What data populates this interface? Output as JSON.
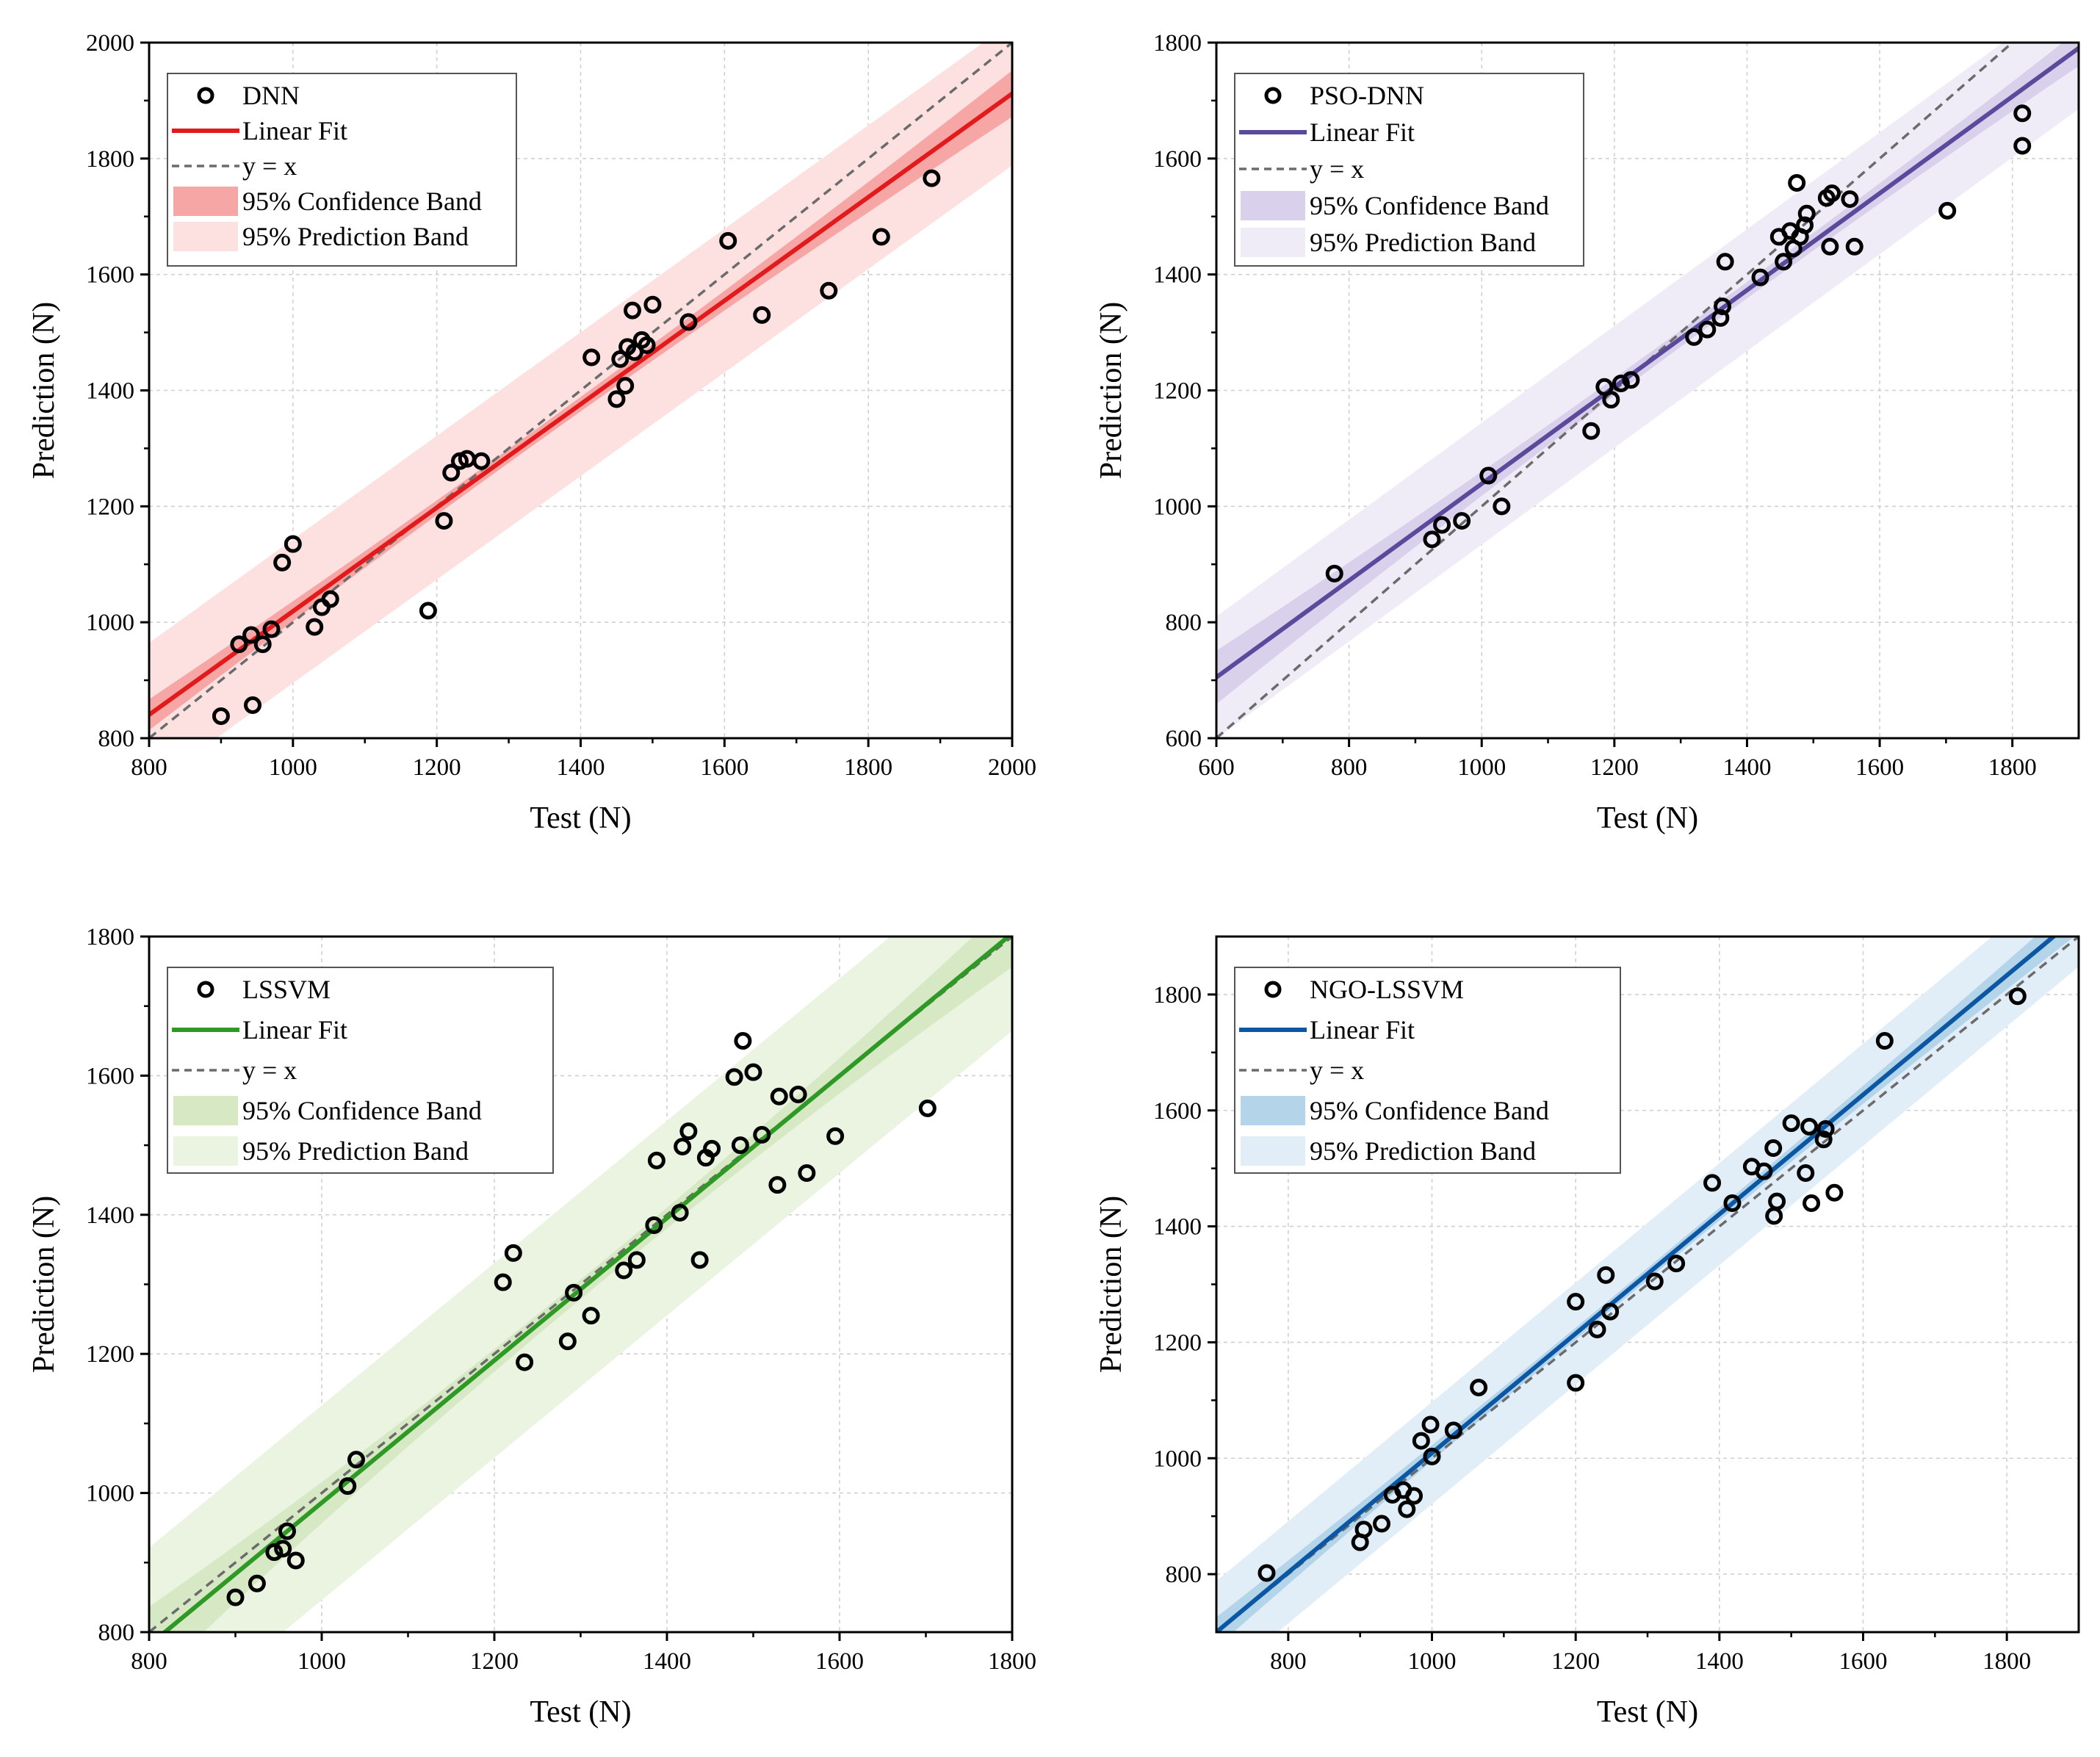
{
  "chart_data": [
    {
      "type": "scatter",
      "model": "DNN",
      "color": "#e31a1c",
      "conf_color": "#f7a6a6",
      "pred_color": "#fde1e1",
      "xlabel": "Test (N)",
      "ylabel": "Prediction (N)",
      "xlim": [
        800,
        2000
      ],
      "ylim": [
        800,
        2000
      ],
      "xticks": [
        800,
        1000,
        1200,
        1400,
        1600,
        1800,
        2000
      ],
      "yticks": [
        800,
        1000,
        1200,
        1400,
        1600,
        1800,
        2000
      ],
      "fit": {
        "slope": 0.893,
        "intercept": 126
      },
      "conf_halfwidth": {
        "min": 12,
        "max": 40
      },
      "pred_halfwidth": 124,
      "legend": {
        "points": "DNN",
        "fit": "Linear Fit",
        "identity": "y = x",
        "conf": "95% Confidence Band",
        "pred": "95% Prediction Band"
      },
      "points": [
        [
          900,
          838
        ],
        [
          925,
          962
        ],
        [
          942,
          978
        ],
        [
          944,
          857
        ],
        [
          958,
          962
        ],
        [
          970,
          988
        ],
        [
          985,
          1103
        ],
        [
          1000,
          1135
        ],
        [
          1030,
          992
        ],
        [
          1040,
          1026
        ],
        [
          1052,
          1040
        ],
        [
          1188,
          1020
        ],
        [
          1210,
          1175
        ],
        [
          1220,
          1258
        ],
        [
          1232,
          1278
        ],
        [
          1242,
          1282
        ],
        [
          1262,
          1278
        ],
        [
          1415,
          1457
        ],
        [
          1450,
          1385
        ],
        [
          1455,
          1454
        ],
        [
          1462,
          1408
        ],
        [
          1465,
          1475
        ],
        [
          1472,
          1538
        ],
        [
          1475,
          1466
        ],
        [
          1485,
          1487
        ],
        [
          1492,
          1478
        ],
        [
          1500,
          1548
        ],
        [
          1550,
          1518
        ],
        [
          1605,
          1658
        ],
        [
          1652,
          1530
        ],
        [
          1745,
          1572
        ],
        [
          1818,
          1665
        ],
        [
          1888,
          1766
        ]
      ]
    },
    {
      "type": "scatter",
      "model": "PSO-DNN",
      "color": "#5b4a9b",
      "conf_color": "#d9d1ec",
      "pred_color": "#efebf7",
      "xlabel": "Test (N)",
      "ylabel": "Prediction (N)",
      "xlim": [
        600,
        1900
      ],
      "ylim": [
        600,
        1800
      ],
      "xticks": [
        600,
        800,
        1000,
        1200,
        1400,
        1600,
        1800
      ],
      "yticks": [
        600,
        800,
        1000,
        1200,
        1400,
        1600,
        1800
      ],
      "fit": {
        "slope": 0.835,
        "intercept": 204
      },
      "conf_halfwidth": {
        "min": 14,
        "max": 46
      },
      "pred_halfwidth": 105,
      "legend": {
        "points": "PSO-DNN",
        "fit": "Linear Fit",
        "identity": "y = x",
        "conf": "95% Confidence Band",
        "pred": "95% Prediction Band"
      },
      "points": [
        [
          778,
          884
        ],
        [
          925,
          943
        ],
        [
          940,
          968
        ],
        [
          970,
          975
        ],
        [
          1010,
          1053
        ],
        [
          1030,
          1000
        ],
        [
          1165,
          1130
        ],
        [
          1185,
          1206
        ],
        [
          1195,
          1184
        ],
        [
          1210,
          1212
        ],
        [
          1225,
          1218
        ],
        [
          1320,
          1292
        ],
        [
          1340,
          1305
        ],
        [
          1360,
          1325
        ],
        [
          1363,
          1345
        ],
        [
          1367,
          1422
        ],
        [
          1420,
          1395
        ],
        [
          1448,
          1465
        ],
        [
          1455,
          1422
        ],
        [
          1465,
          1475
        ],
        [
          1470,
          1445
        ],
        [
          1475,
          1558
        ],
        [
          1480,
          1465
        ],
        [
          1487,
          1485
        ],
        [
          1490,
          1505
        ],
        [
          1520,
          1532
        ],
        [
          1525,
          1448
        ],
        [
          1528,
          1540
        ],
        [
          1555,
          1530
        ],
        [
          1562,
          1448
        ],
        [
          1702,
          1510
        ],
        [
          1815,
          1678
        ],
        [
          1815,
          1622
        ]
      ]
    },
    {
      "type": "scatter",
      "model": "LSSVM",
      "color": "#2e9a25",
      "conf_color": "#d6e8c4",
      "pred_color": "#eaf4e0",
      "xlabel": "Test (N)",
      "ylabel": "Prediction (N)",
      "xlim": [
        800,
        1800
      ],
      "ylim": [
        800,
        1800
      ],
      "xticks": [
        800,
        1000,
        1200,
        1400,
        1600,
        1800
      ],
      "yticks": [
        800,
        1000,
        1200,
        1400,
        1600,
        1800
      ],
      "fit": {
        "slope": 1.023,
        "intercept": -37
      },
      "conf_halfwidth": {
        "min": 14,
        "max": 55
      },
      "pred_halfwidth": 140,
      "legend": {
        "points": "LSSVM",
        "fit": "Linear Fit",
        "identity": "y = x",
        "conf": "95% Confidence Band",
        "pred": "95% Prediction Band"
      },
      "points": [
        [
          900,
          850
        ],
        [
          925,
          870
        ],
        [
          945,
          915
        ],
        [
          955,
          920
        ],
        [
          960,
          945
        ],
        [
          970,
          903
        ],
        [
          1030,
          1010
        ],
        [
          1040,
          1048
        ],
        [
          1210,
          1303
        ],
        [
          1222,
          1345
        ],
        [
          1235,
          1188
        ],
        [
          1285,
          1218
        ],
        [
          1292,
          1288
        ],
        [
          1312,
          1255
        ],
        [
          1350,
          1320
        ],
        [
          1365,
          1335
        ],
        [
          1385,
          1385
        ],
        [
          1388,
          1478
        ],
        [
          1415,
          1403
        ],
        [
          1418,
          1498
        ],
        [
          1425,
          1520
        ],
        [
          1438,
          1335
        ],
        [
          1445,
          1482
        ],
        [
          1452,
          1495
        ],
        [
          1478,
          1598
        ],
        [
          1485,
          1500
        ],
        [
          1488,
          1650
        ],
        [
          1500,
          1605
        ],
        [
          1510,
          1515
        ],
        [
          1528,
          1443
        ],
        [
          1530,
          1570
        ],
        [
          1552,
          1573
        ],
        [
          1562,
          1460
        ],
        [
          1595,
          1513
        ],
        [
          1702,
          1553
        ]
      ]
    },
    {
      "type": "scatter",
      "model": "NGO-LSSVM",
      "color": "#0b57a4",
      "conf_color": "#b4d4ea",
      "pred_color": "#e1edf7",
      "xlabel": "Test (N)",
      "ylabel": "Prediction (N)",
      "xlim": [
        700,
        1900
      ],
      "ylim": [
        700,
        1900
      ],
      "xticks": [
        800,
        1000,
        1200,
        1400,
        1600,
        1800
      ],
      "yticks": [
        800,
        1000,
        1200,
        1400,
        1600,
        1800
      ],
      "fit": {
        "slope": 1.03,
        "intercept": -21
      },
      "conf_halfwidth": {
        "min": 10,
        "max": 30
      },
      "pred_halfwidth": 88,
      "legend": {
        "points": "NGO-LSSVM",
        "fit": "Linear Fit",
        "identity": "y = x",
        "conf": "95% Confidence Band",
        "pred": "95% Prediction Band"
      },
      "points": [
        [
          770,
          802
        ],
        [
          900,
          855
        ],
        [
          905,
          877
        ],
        [
          930,
          887
        ],
        [
          945,
          937
        ],
        [
          960,
          945
        ],
        [
          965,
          912
        ],
        [
          975,
          935
        ],
        [
          985,
          1030
        ],
        [
          998,
          1058
        ],
        [
          1000,
          1003
        ],
        [
          1030,
          1048
        ],
        [
          1065,
          1122
        ],
        [
          1200,
          1130
        ],
        [
          1200,
          1270
        ],
        [
          1230,
          1222
        ],
        [
          1242,
          1316
        ],
        [
          1248,
          1253
        ],
        [
          1310,
          1305
        ],
        [
          1340,
          1336
        ],
        [
          1390,
          1475
        ],
        [
          1418,
          1440
        ],
        [
          1445,
          1503
        ],
        [
          1462,
          1495
        ],
        [
          1475,
          1535
        ],
        [
          1476,
          1418
        ],
        [
          1480,
          1443
        ],
        [
          1500,
          1578
        ],
        [
          1520,
          1492
        ],
        [
          1525,
          1572
        ],
        [
          1528,
          1440
        ],
        [
          1545,
          1550
        ],
        [
          1548,
          1568
        ],
        [
          1560,
          1458
        ],
        [
          1630,
          1720
        ],
        [
          1815,
          1797
        ]
      ]
    }
  ]
}
